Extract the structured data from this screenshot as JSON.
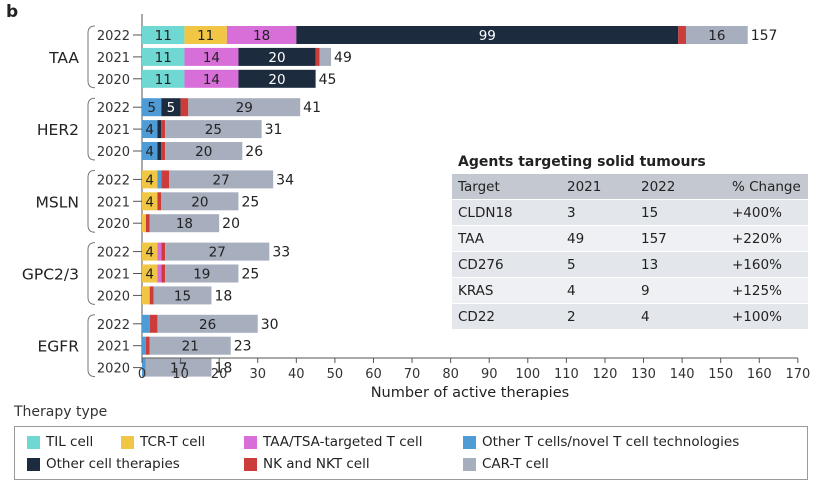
{
  "panel_label": "b",
  "colors": {
    "til": "#6fd8d3",
    "tcr": "#f1c644",
    "taa_tsa": "#d86fd9",
    "other_t": "#4f9bd6",
    "other_cell": "#1d2b3f",
    "nk": "#cc3c3a",
    "cart": "#a7aebd"
  },
  "chart_data": {
    "type": "bar",
    "orientation": "horizontal",
    "stacked": true,
    "xlabel": "Number of active therapies",
    "xlim": [
      0,
      170
    ],
    "xticks": [
      0,
      10,
      20,
      30,
      40,
      50,
      60,
      70,
      80,
      90,
      100,
      110,
      120,
      130,
      140,
      150,
      160,
      170
    ],
    "series": [
      {
        "key": "til",
        "name": "TIL cell"
      },
      {
        "key": "tcr",
        "name": "TCR-T cell"
      },
      {
        "key": "taa_tsa",
        "name": "TAA/TSA-targeted T cell"
      },
      {
        "key": "other_t",
        "name": "Other T cells/novel T cell technologies"
      },
      {
        "key": "other_cell",
        "name": "Other cell therapies"
      },
      {
        "key": "nk",
        "name": "NK and NKT cell"
      },
      {
        "key": "cart",
        "name": "CAR-T cell"
      }
    ],
    "groups": [
      {
        "name": "TAA",
        "bars": [
          {
            "year": "2022",
            "total": 157,
            "segments": [
              {
                "s": "til",
                "v": 11,
                "label": "11"
              },
              {
                "s": "tcr",
                "v": 11,
                "label": "11"
              },
              {
                "s": "taa_tsa",
                "v": 18,
                "label": "18"
              },
              {
                "s": "other_cell",
                "v": 99,
                "label": "99"
              },
              {
                "s": "nk",
                "v": 2,
                "label": ""
              },
              {
                "s": "cart",
                "v": 16,
                "label": "16"
              }
            ]
          },
          {
            "year": "2021",
            "total": 49,
            "segments": [
              {
                "s": "til",
                "v": 11,
                "label": "11"
              },
              {
                "s": "taa_tsa",
                "v": 14,
                "label": "14"
              },
              {
                "s": "other_cell",
                "v": 20,
                "label": "20"
              },
              {
                "s": "nk",
                "v": 1,
                "label": ""
              },
              {
                "s": "cart",
                "v": 3,
                "label": ""
              }
            ]
          },
          {
            "year": "2020",
            "total": 45,
            "segments": [
              {
                "s": "til",
                "v": 11,
                "label": "11"
              },
              {
                "s": "taa_tsa",
                "v": 14,
                "label": "14"
              },
              {
                "s": "other_cell",
                "v": 20,
                "label": "20"
              }
            ]
          }
        ]
      },
      {
        "name": "HER2",
        "bars": [
          {
            "year": "2022",
            "total": 41,
            "segments": [
              {
                "s": "other_t",
                "v": 5,
                "label": "5"
              },
              {
                "s": "other_cell",
                "v": 5,
                "label": "5"
              },
              {
                "s": "nk",
                "v": 2,
                "label": ""
              },
              {
                "s": "cart",
                "v": 29,
                "label": "29"
              }
            ]
          },
          {
            "year": "2021",
            "total": 31,
            "segments": [
              {
                "s": "other_t",
                "v": 4,
                "label": "4"
              },
              {
                "s": "other_cell",
                "v": 1,
                "label": ""
              },
              {
                "s": "nk",
                "v": 1,
                "label": ""
              },
              {
                "s": "cart",
                "v": 25,
                "label": "25"
              }
            ]
          },
          {
            "year": "2020",
            "total": 26,
            "segments": [
              {
                "s": "other_t",
                "v": 4,
                "label": "4"
              },
              {
                "s": "other_cell",
                "v": 1,
                "label": ""
              },
              {
                "s": "nk",
                "v": 1,
                "label": ""
              },
              {
                "s": "cart",
                "v": 20,
                "label": "20"
              }
            ]
          }
        ]
      },
      {
        "name": "MSLN",
        "bars": [
          {
            "year": "2022",
            "total": 34,
            "segments": [
              {
                "s": "tcr",
                "v": 4,
                "label": "4"
              },
              {
                "s": "other_t",
                "v": 1,
                "label": ""
              },
              {
                "s": "nk",
                "v": 2,
                "label": ""
              },
              {
                "s": "cart",
                "v": 27,
                "label": "27"
              }
            ]
          },
          {
            "year": "2021",
            "total": 25,
            "segments": [
              {
                "s": "tcr",
                "v": 4,
                "label": "4"
              },
              {
                "s": "nk",
                "v": 1,
                "label": ""
              },
              {
                "s": "cart",
                "v": 20,
                "label": "20"
              }
            ]
          },
          {
            "year": "2020",
            "total": 20,
            "segments": [
              {
                "s": "tcr",
                "v": 1,
                "label": ""
              },
              {
                "s": "nk",
                "v": 1,
                "label": ""
              },
              {
                "s": "cart",
                "v": 18,
                "label": "18"
              }
            ]
          }
        ]
      },
      {
        "name": "GPC2/3",
        "bars": [
          {
            "year": "2022",
            "total": 33,
            "segments": [
              {
                "s": "tcr",
                "v": 4,
                "label": "4"
              },
              {
                "s": "taa_tsa",
                "v": 1,
                "label": ""
              },
              {
                "s": "nk",
                "v": 1,
                "label": ""
              },
              {
                "s": "cart",
                "v": 27,
                "label": "27"
              }
            ]
          },
          {
            "year": "2021",
            "total": 25,
            "segments": [
              {
                "s": "tcr",
                "v": 4,
                "label": "4"
              },
              {
                "s": "taa_tsa",
                "v": 1,
                "label": ""
              },
              {
                "s": "nk",
                "v": 1,
                "label": ""
              },
              {
                "s": "cart",
                "v": 19,
                "label": "19"
              }
            ]
          },
          {
            "year": "2020",
            "total": 18,
            "segments": [
              {
                "s": "tcr",
                "v": 2,
                "label": ""
              },
              {
                "s": "nk",
                "v": 1,
                "label": ""
              },
              {
                "s": "cart",
                "v": 15,
                "label": "15"
              }
            ]
          }
        ]
      },
      {
        "name": "EGFR",
        "bars": [
          {
            "year": "2022",
            "total": 30,
            "segments": [
              {
                "s": "other_t",
                "v": 2,
                "label": ""
              },
              {
                "s": "nk",
                "v": 2,
                "label": ""
              },
              {
                "s": "cart",
                "v": 26,
                "label": "26"
              }
            ]
          },
          {
            "year": "2021",
            "total": 23,
            "segments": [
              {
                "s": "other_t",
                "v": 1,
                "label": ""
              },
              {
                "s": "nk",
                "v": 1,
                "label": ""
              },
              {
                "s": "cart",
                "v": 21,
                "label": "21"
              }
            ]
          },
          {
            "year": "2020",
            "total": 18,
            "segments": [
              {
                "s": "other_t",
                "v": 1,
                "label": ""
              },
              {
                "s": "cart",
                "v": 17,
                "label": "17"
              }
            ]
          }
        ]
      }
    ]
  },
  "legend": {
    "title": "Therapy type",
    "items": [
      {
        "key": "til",
        "label": "TIL cell"
      },
      {
        "key": "tcr",
        "label": "TCR-T cell"
      },
      {
        "key": "taa_tsa",
        "label": "TAA/TSA-targeted T cell"
      },
      {
        "key": "other_t",
        "label": "Other T cells/novel T cell technologies"
      },
      {
        "key": "other_cell",
        "label": "Other cell therapies"
      },
      {
        "key": "nk",
        "label": "NK and NKT cell"
      },
      {
        "key": "cart",
        "label": "CAR-T cell"
      }
    ]
  },
  "table": {
    "title": "Agents targeting solid tumours",
    "headers": [
      "Target",
      "2021",
      "2022",
      "% Change"
    ],
    "rows": [
      [
        "CLDN18",
        "3",
        "15",
        "+400%"
      ],
      [
        "TAA",
        "49",
        "157",
        "+220%"
      ],
      [
        "CD276",
        "5",
        "13",
        "+160%"
      ],
      [
        "KRAS",
        "4",
        "9",
        "+125%"
      ],
      [
        "CD22",
        "2",
        "4",
        "+100%"
      ]
    ]
  }
}
